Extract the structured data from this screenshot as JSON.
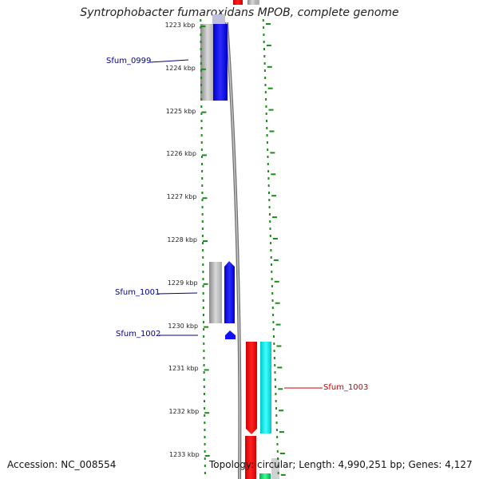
{
  "title": "Syntrophobacter fumaroxidans MPOB, complete genome",
  "footer": {
    "accession": "Accession: NC_008554",
    "summary": "Topology: circular; Length: 4,990,251 bp; Genes: 4,127"
  },
  "scale": {
    "ticks": [
      {
        "label": "1223 kbp",
        "kbp": 1223
      },
      {
        "label": "1224 kbp",
        "kbp": 1224
      },
      {
        "label": "1225 kbp",
        "kbp": 1225
      },
      {
        "label": "1226 kbp",
        "kbp": 1226
      },
      {
        "label": "1227 kbp",
        "kbp": 1227
      },
      {
        "label": "1228 kbp",
        "kbp": 1228
      },
      {
        "label": "1229 kbp",
        "kbp": 1229
      },
      {
        "label": "1230 kbp",
        "kbp": 1230
      },
      {
        "label": "1231 kbp",
        "kbp": 1231
      },
      {
        "label": "1232 kbp",
        "kbp": 1232
      },
      {
        "label": "1233 kbp",
        "kbp": 1233
      }
    ]
  },
  "genes": [
    {
      "name": "Sfum_0999",
      "strand": "reverse",
      "start_kbp": 1222.8,
      "end_kbp": 1224.8,
      "color": "#0000ff",
      "label_color": "#00008b"
    },
    {
      "name": "Sfum_1001",
      "strand": "reverse",
      "start_kbp": 1228.5,
      "end_kbp": 1229.9,
      "color": "#0000ff",
      "label_color": "#00008b"
    },
    {
      "name": "Sfum_1002",
      "strand": "reverse",
      "start_kbp": 1230.15,
      "end_kbp": 1230.3,
      "color": "#0000ff",
      "label_color": "#00008b"
    },
    {
      "name": "Sfum_1003",
      "strand": "forward",
      "start_kbp": 1230.4,
      "end_kbp": 1232.5,
      "color": "#ff0000",
      "label_color": "#cc0000"
    }
  ],
  "colors": {
    "gene_forward": "#ff0000",
    "gene_reverse": "#0000ff",
    "cds_track": "#00e5e5",
    "rna_track_dark": "#00cc66",
    "tick_dots": "#1a8c1a",
    "backbone": "#808080"
  }
}
